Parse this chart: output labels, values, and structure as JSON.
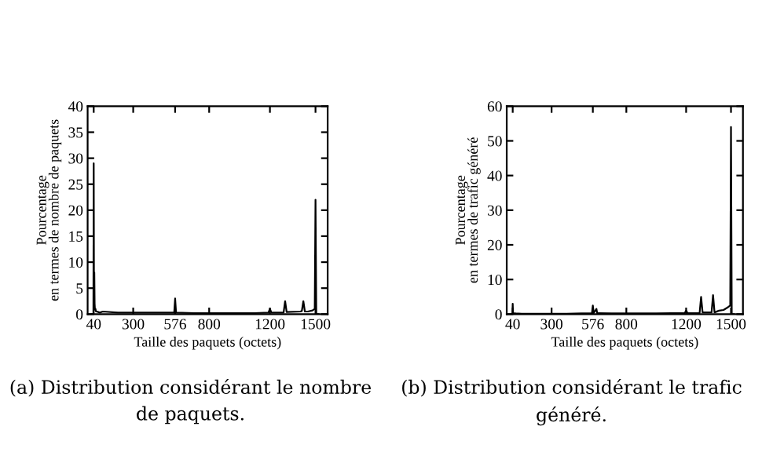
{
  "chart_data": [
    {
      "type": "line",
      "xlabel": "Taille des paquets (octets)",
      "ylabel": "Pourcentage\nen termes de nombre de paquets",
      "annotations": [
        "(a) Distribution considérant le nombre de paquets."
      ],
      "series": [
        {
          "color": "#000000",
          "x": [
            30,
            38,
            40,
            42,
            44,
            46,
            48,
            50,
            52,
            54,
            56,
            60,
            70,
            80,
            100,
            200,
            300,
            400,
            500,
            570,
            576,
            582,
            700,
            800,
            900,
            1000,
            1100,
            1190,
            1200,
            1210,
            1290,
            1300,
            1310,
            1400,
            1410,
            1420,
            1430,
            1450,
            1480,
            1495,
            1500,
            1505,
            1520
          ],
          "values": [
            0,
            0,
            29,
            1,
            8,
            2,
            1,
            0.8,
            1,
            0.6,
            0.5,
            0.5,
            0.4,
            0.3,
            0.5,
            0.3,
            0.3,
            0.3,
            0.3,
            0.3,
            3,
            0.3,
            0.2,
            0.2,
            0.2,
            0.2,
            0.2,
            0.3,
            1,
            0.3,
            0.3,
            2.5,
            0.4,
            0.5,
            0.6,
            2.5,
            0.5,
            0.5,
            0.7,
            1,
            22,
            0,
            0
          ]
        }
      ],
      "xlim": [
        0,
        1580
      ],
      "xticks": [
        40,
        300,
        576,
        800,
        1200,
        1500
      ],
      "ylim": [
        0,
        40
      ],
      "yticks": [
        0,
        5,
        10,
        15,
        20,
        25,
        30,
        35,
        40
      ],
      "grid": false
    },
    {
      "type": "line",
      "xlabel": "Taille des paquets (octets)",
      "ylabel": "Pourcentage\nen termes de trafic généré",
      "annotations": [
        "(b) Distribution considérant le trafic généré."
      ],
      "series": [
        {
          "color": "#000000",
          "x": [
            30,
            38,
            40,
            42,
            60,
            100,
            200,
            300,
            400,
            500,
            570,
            576,
            582,
            600,
            605,
            700,
            800,
            900,
            1000,
            1100,
            1190,
            1200,
            1210,
            1290,
            1300,
            1310,
            1370,
            1380,
            1390,
            1420,
            1450,
            1480,
            1495,
            1500,
            1505,
            1520
          ],
          "values": [
            0,
            0,
            3,
            0.3,
            0.2,
            0.1,
            0.1,
            0.1,
            0.1,
            0.2,
            0.3,
            2.5,
            0.3,
            1.5,
            0.3,
            0.2,
            0.2,
            0.2,
            0.2,
            0.3,
            0.3,
            1,
            0.3,
            0.3,
            5,
            0.5,
            0.5,
            5.5,
            0.5,
            1,
            1.2,
            2,
            2.5,
            54,
            0,
            0
          ]
        }
      ],
      "xlim": [
        0,
        1580
      ],
      "xticks": [
        40,
        300,
        576,
        800,
        1200,
        1500
      ],
      "ylim": [
        0,
        60
      ],
      "yticks": [
        0,
        10,
        20,
        30,
        40,
        50,
        60
      ],
      "grid": false
    }
  ]
}
